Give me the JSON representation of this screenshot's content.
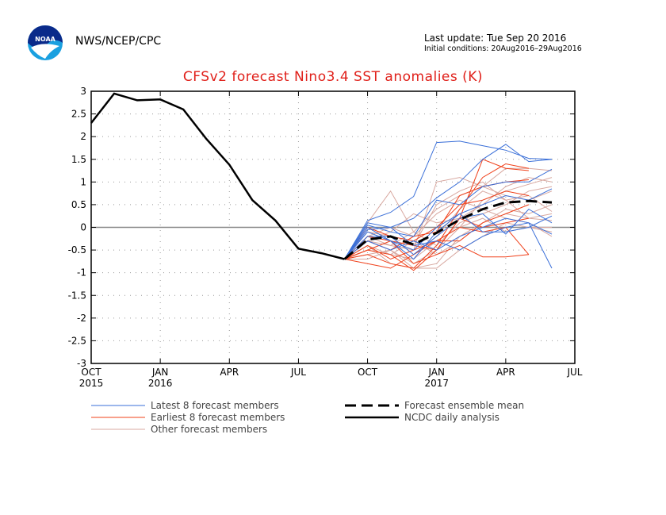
{
  "header": {
    "org": "NWS/NCEP/CPC",
    "logo_text": "NOAA",
    "last_update": "Last update: Tue Sep 20 2016",
    "initial_conditions": "Initial conditions: 20Aug2016–29Aug2016"
  },
  "chart_data": {
    "type": "line",
    "title": "CFSv2 forecast Nino3.4 SST anomalies (K)",
    "xlabel": "",
    "ylabel": "",
    "xlim": [
      "2015-10",
      "2017-07"
    ],
    "ylim": [
      -3,
      3
    ],
    "yticks": [
      3,
      2.5,
      2,
      1.5,
      1,
      0.5,
      0,
      -0.5,
      -1,
      -1.5,
      -2,
      -2.5,
      -3
    ],
    "xticks": [
      {
        "x": "2015-10",
        "label": "OCT",
        "year": "2015"
      },
      {
        "x": "2016-01",
        "label": "JAN",
        "year": "2016"
      },
      {
        "x": "2016-04",
        "label": "APR",
        "year": ""
      },
      {
        "x": "2016-07",
        "label": "JUL",
        "year": ""
      },
      {
        "x": "2016-10",
        "label": "OCT",
        "year": ""
      },
      {
        "x": "2017-01",
        "label": "JAN",
        "year": "2017"
      },
      {
        "x": "2017-04",
        "label": "APR",
        "year": ""
      },
      {
        "x": "2017-07",
        "label": "JUL",
        "year": ""
      }
    ],
    "grid": true,
    "zero_line": true,
    "legend_placement": "bottom",
    "colors": {
      "latest": "#3a6fd8",
      "earliest": "#f0401a",
      "other": "#d8a8a0",
      "mean": "#000000",
      "analysis": "#000000",
      "title": "#e0201a"
    },
    "forecast_x": [
      "2016-09",
      "2016-10",
      "2016-11",
      "2016-12",
      "2017-01",
      "2017-02",
      "2017-03",
      "2017-04",
      "2017-05",
      "2017-06"
    ],
    "analysis": {
      "name": "NCDC daily analysis",
      "x": [
        "2015-10",
        "2015-11",
        "2015-12",
        "2016-01",
        "2016-02",
        "2016-03",
        "2016-04",
        "2016-05",
        "2016-06",
        "2016-07",
        "2016-08",
        "2016-09"
      ],
      "values": [
        2.3,
        2.95,
        2.8,
        2.82,
        2.6,
        1.95,
        1.38,
        0.6,
        0.15,
        -0.47,
        -0.57,
        -0.7
      ]
    },
    "mean": {
      "name": "Forecast ensemble mean",
      "values": [
        -0.7,
        -0.27,
        -0.2,
        -0.38,
        -0.12,
        0.17,
        0.4,
        0.55,
        0.58,
        0.55
      ]
    },
    "latest": {
      "name": "Latest 8 forecast members",
      "members": [
        [
          -0.7,
          0.15,
          0.33,
          0.68,
          1.87,
          1.9,
          1.8,
          1.7,
          1.52,
          1.5
        ],
        [
          -0.7,
          0.1,
          0.0,
          0.2,
          0.65,
          1.0,
          1.5,
          1.83,
          1.45,
          1.5
        ],
        [
          -0.7,
          0.05,
          -0.1,
          -0.2,
          0.6,
          0.5,
          0.9,
          1.0,
          1.0,
          1.28
        ],
        [
          -0.7,
          -0.1,
          -0.3,
          -0.5,
          0.0,
          0.3,
          0.5,
          0.7,
          0.6,
          0.85
        ],
        [
          -0.7,
          -0.2,
          -0.2,
          -0.6,
          -0.2,
          0.2,
          0.3,
          -0.15,
          0.4,
          0.1
        ],
        [
          -0.7,
          -0.3,
          -0.5,
          -0.3,
          -0.5,
          -0.2,
          0.0,
          0.2,
          0.1,
          -0.15
        ],
        [
          -0.7,
          -0.05,
          0.0,
          -0.4,
          -0.3,
          -0.5,
          -0.2,
          0.0,
          0.1,
          -0.9
        ],
        [
          -0.7,
          0.0,
          -0.3,
          -0.7,
          -0.1,
          0.3,
          -0.1,
          -0.1,
          0.0,
          0.25
        ]
      ]
    },
    "earliest": {
      "name": "Earliest 8 forecast members",
      "members": [
        [
          -0.7,
          -0.5,
          -0.6,
          -0.95,
          -0.5,
          0.2,
          1.5,
          1.3,
          1.25,
          null
        ],
        [
          -0.7,
          -0.6,
          -0.8,
          -0.9,
          -0.4,
          0.4,
          1.1,
          1.4,
          1.3,
          null
        ],
        [
          -0.7,
          -0.3,
          -0.5,
          -0.2,
          -0.1,
          0.7,
          0.9,
          1.0,
          1.05,
          null
        ],
        [
          -0.7,
          0.0,
          -0.2,
          -0.3,
          0.0,
          0.5,
          0.6,
          0.8,
          0.7,
          null
        ],
        [
          -0.7,
          -0.4,
          -0.7,
          -0.5,
          -0.3,
          -0.3,
          0.1,
          0.3,
          0.5,
          null
        ],
        [
          -0.7,
          -0.2,
          -0.3,
          -0.8,
          -0.6,
          -0.4,
          -0.65,
          -0.65,
          -0.6,
          null
        ],
        [
          -0.7,
          -0.8,
          -0.9,
          -0.6,
          -0.3,
          0.0,
          -0.1,
          0.0,
          -0.6,
          null
        ],
        [
          -0.7,
          -0.5,
          -0.3,
          -0.4,
          -0.5,
          0.2,
          0.0,
          0.1,
          0.2,
          null
        ]
      ]
    },
    "other": {
      "name": "Other forecast members",
      "members": [
        [
          -0.7,
          0.1,
          0.8,
          -0.1,
          0.4,
          0.7,
          0.9,
          0.7,
          0.6,
          0.8
        ],
        [
          -0.7,
          -0.3,
          -0.4,
          -0.5,
          1.0,
          1.1,
          0.9,
          1.3,
          1.3,
          1.25
        ],
        [
          -0.7,
          -0.6,
          -0.5,
          -0.8,
          -0.5,
          0.0,
          0.6,
          0.8,
          0.95,
          1.1
        ],
        [
          -0.7,
          -0.4,
          -0.8,
          -0.9,
          -0.8,
          -0.2,
          0.1,
          0.4,
          0.3,
          0.5
        ],
        [
          -0.7,
          -0.2,
          0.0,
          -0.2,
          0.3,
          0.6,
          0.4,
          0.2,
          0.1,
          -0.2
        ],
        [
          -0.7,
          -0.5,
          -0.6,
          -0.7,
          -0.3,
          0.0,
          0.2,
          -0.1,
          0.0,
          0.0
        ],
        [
          -0.7,
          -0.1,
          -0.2,
          -0.6,
          -0.2,
          0.4,
          0.8,
          0.6,
          0.7,
          0.35
        ],
        [
          -0.7,
          -0.7,
          -0.5,
          -0.9,
          -0.9,
          -0.5,
          -0.2,
          0.1,
          0.0,
          -0.1
        ],
        [
          -0.7,
          -0.3,
          -0.1,
          0.3,
          0.1,
          0.2,
          0.5,
          0.9,
          1.1,
          1.0
        ],
        [
          -0.7,
          0.0,
          -0.3,
          -0.4,
          0.5,
          0.8,
          1.0,
          0.6,
          0.2,
          0.3
        ],
        [
          -0.7,
          -0.4,
          -0.6,
          -0.3,
          -0.6,
          -0.3,
          0.1,
          0.3,
          0.2,
          0.15
        ],
        [
          -0.7,
          -0.2,
          -0.4,
          -0.1,
          -0.4,
          0.1,
          0.3,
          0.5,
          0.8,
          0.9
        ]
      ]
    }
  }
}
